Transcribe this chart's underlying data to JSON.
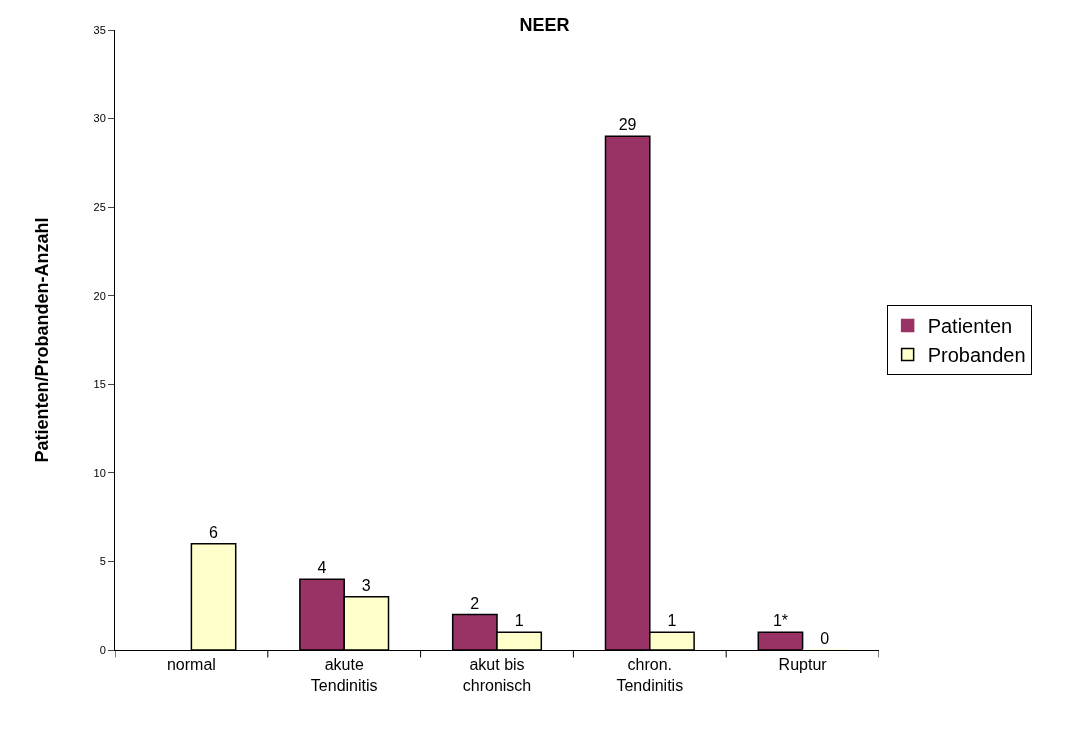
{
  "chart_data": {
    "type": "bar",
    "title": "NEER",
    "ylabel": "Patienten/Probanden-Anzahl",
    "categories": [
      "normal",
      "akute\nTendinitis",
      "akut bis\nchronisch",
      "chron.\nTendinitis",
      "Ruptur"
    ],
    "series": [
      {
        "name": "Patienten",
        "color": "#993366",
        "values": [
          null,
          4,
          2,
          29,
          1
        ],
        "value_labels": [
          null,
          "4",
          "2",
          "29",
          "1*"
        ]
      },
      {
        "name": "Probanden",
        "color": "#ffffcc",
        "values": [
          6,
          3,
          1,
          1,
          0
        ],
        "value_labels": [
          "6",
          "3",
          "1",
          "1",
          "0"
        ]
      }
    ],
    "ylim": [
      0,
      35
    ],
    "yticks": [
      0,
      5,
      10,
      15,
      20,
      25,
      30,
      35
    ],
    "legend": "right"
  }
}
